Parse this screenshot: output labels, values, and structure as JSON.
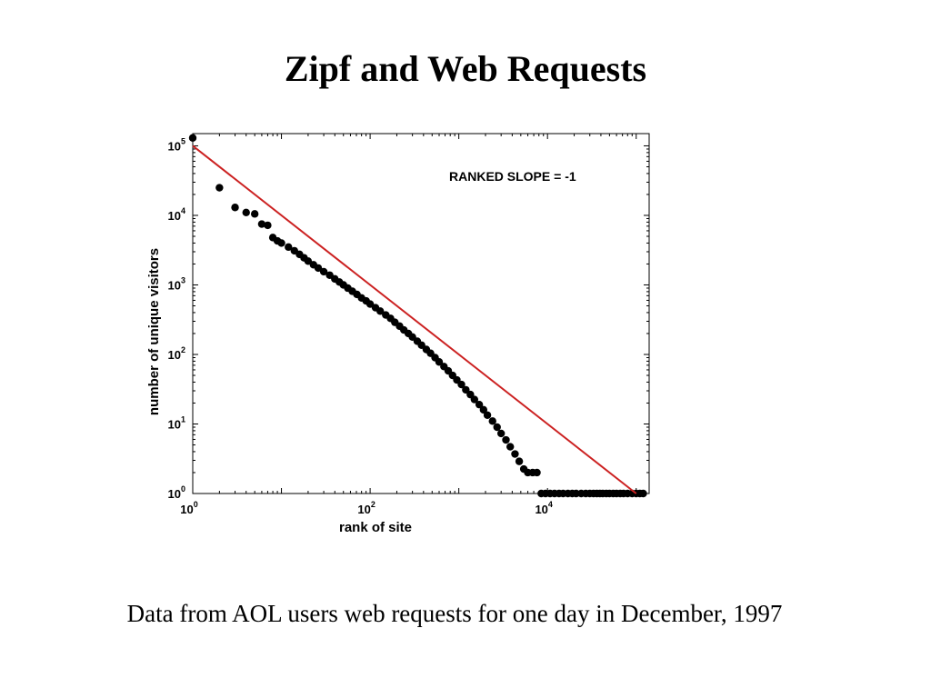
{
  "slide": {
    "title": "Zipf and Web Requests",
    "caption": "Data from AOL users web requests for one day in December, 1997"
  },
  "chart_data": {
    "type": "scatter",
    "title": "",
    "xlabel": "rank of site",
    "ylabel": "number of unique visitors",
    "x_scale": "log",
    "y_scale": "log",
    "xlim": [
      1,
      140000
    ],
    "ylim": [
      1,
      150000
    ],
    "x_ticks": [
      {
        "value": 1,
        "base": "10",
        "exp": "0"
      },
      {
        "value": 100,
        "base": "10",
        "exp": "2"
      },
      {
        "value": 10000,
        "base": "10",
        "exp": "4"
      }
    ],
    "y_ticks": [
      {
        "value": 1,
        "base": "10",
        "exp": "0"
      },
      {
        "value": 10,
        "base": "10",
        "exp": "1"
      },
      {
        "value": 100,
        "base": "10",
        "exp": "2"
      },
      {
        "value": 1000,
        "base": "10",
        "exp": "3"
      },
      {
        "value": 10000,
        "base": "10",
        "exp": "4"
      },
      {
        "value": 100000,
        "base": "10",
        "exp": "5"
      }
    ],
    "annotation": "RANKED SLOPE = -1",
    "grid": false,
    "colors": {
      "points": "#000000",
      "fit_line": "#cc2222"
    },
    "fit_line": {
      "slope": -1,
      "x": [
        1,
        100000
      ],
      "y": [
        100000,
        1
      ]
    },
    "series": [
      {
        "x": [
          1,
          2,
          3,
          4,
          5,
          6,
          7,
          8,
          9,
          10,
          12,
          14,
          16,
          18,
          20,
          23,
          26,
          30,
          35,
          40,
          45,
          50,
          56,
          63,
          71,
          80,
          90,
          100,
          115,
          130,
          150,
          170,
          190,
          215,
          240,
          270,
          300,
          340,
          380,
          430,
          480,
          540,
          600,
          680,
          760,
          850,
          950,
          1070,
          1200,
          1350,
          1500,
          1700,
          1900,
          2100,
          2400,
          2700,
          3000,
          3400,
          3800,
          4300,
          4800,
          5400,
          6000,
          6800,
          7600,
          8500,
          9500,
          10700,
          12000,
          13500,
          15000,
          17000,
          19000,
          21000,
          24000,
          27000,
          30000,
          33000,
          36000,
          39000,
          42000,
          46000,
          50000,
          55000,
          60000,
          66000,
          72000,
          80000,
          90000,
          100000,
          110000,
          120000
        ],
        "y": [
          130000,
          25000,
          13000,
          11000,
          10500,
          7500,
          7200,
          4800,
          4300,
          4000,
          3500,
          3100,
          2750,
          2450,
          2200,
          1950,
          1750,
          1550,
          1380,
          1220,
          1100,
          1000,
          900,
          810,
          730,
          650,
          590,
          530,
          470,
          420,
          370,
          330,
          290,
          255,
          225,
          200,
          178,
          155,
          136,
          118,
          104,
          90,
          78,
          67,
          58,
          50,
          43,
          37,
          31,
          26.5,
          22.5,
          19,
          16,
          13.4,
          11,
          9,
          7.3,
          5.9,
          4.7,
          3.7,
          2.9,
          2.25,
          2,
          2,
          2,
          1,
          1,
          1,
          1,
          1,
          1,
          1,
          1,
          1,
          1,
          1,
          1,
          1,
          1,
          1,
          1,
          1,
          1,
          1,
          1,
          1,
          1,
          1,
          1,
          1,
          1,
          1
        ]
      }
    ]
  }
}
